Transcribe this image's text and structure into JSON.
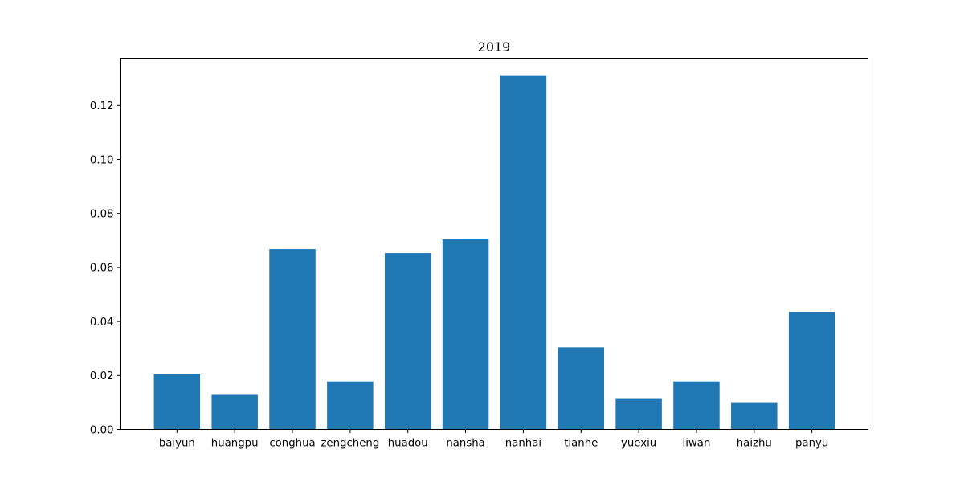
{
  "chart_data": {
    "type": "bar",
    "title": "2019",
    "xlabel": "",
    "ylabel": "",
    "categories": [
      "baiyun",
      "huangpu",
      "conghua",
      "zengcheng",
      "huadou",
      "nansha",
      "nanhai",
      "tianhe",
      "yuexiu",
      "liwan",
      "haizhu",
      "panyu"
    ],
    "values": [
      0.0206,
      0.0128,
      0.0668,
      0.0178,
      0.0653,
      0.0704,
      0.1312,
      0.0304,
      0.0113,
      0.0178,
      0.0098,
      0.0435
    ],
    "ylim": [
      0,
      0.1375
    ],
    "yticks": [
      "0.00",
      "0.02",
      "0.04",
      "0.06",
      "0.08",
      "0.10",
      "0.12"
    ],
    "bar_color": "#1f77b4",
    "grid": false,
    "legend": "none"
  }
}
